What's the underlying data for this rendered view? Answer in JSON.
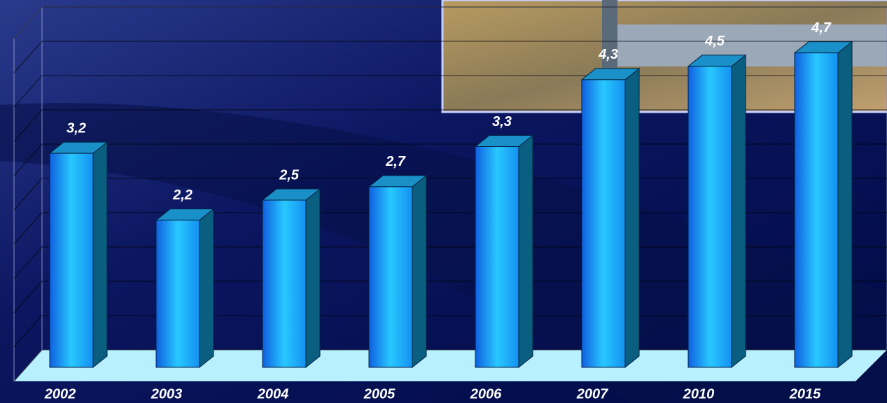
{
  "chart_data": {
    "type": "bar3d",
    "categories": [
      "2002",
      "2003",
      "2004",
      "2005",
      "2006",
      "2007",
      "2010",
      "2015"
    ],
    "values": [
      3.2,
      2.2,
      2.5,
      2.7,
      3.3,
      4.3,
      4.5,
      4.7
    ],
    "value_labels": [
      "3,2",
      "2,2",
      "2,5",
      "2,7",
      "3,3",
      "4,3",
      "4,5",
      "4,7"
    ],
    "color": "#1ea8ff",
    "ylim": [
      0,
      5
    ],
    "yticks": [
      0,
      0.5,
      1,
      1.5,
      2,
      2.5,
      3,
      3.5,
      4,
      4.5,
      5
    ],
    "grid": true
  }
}
